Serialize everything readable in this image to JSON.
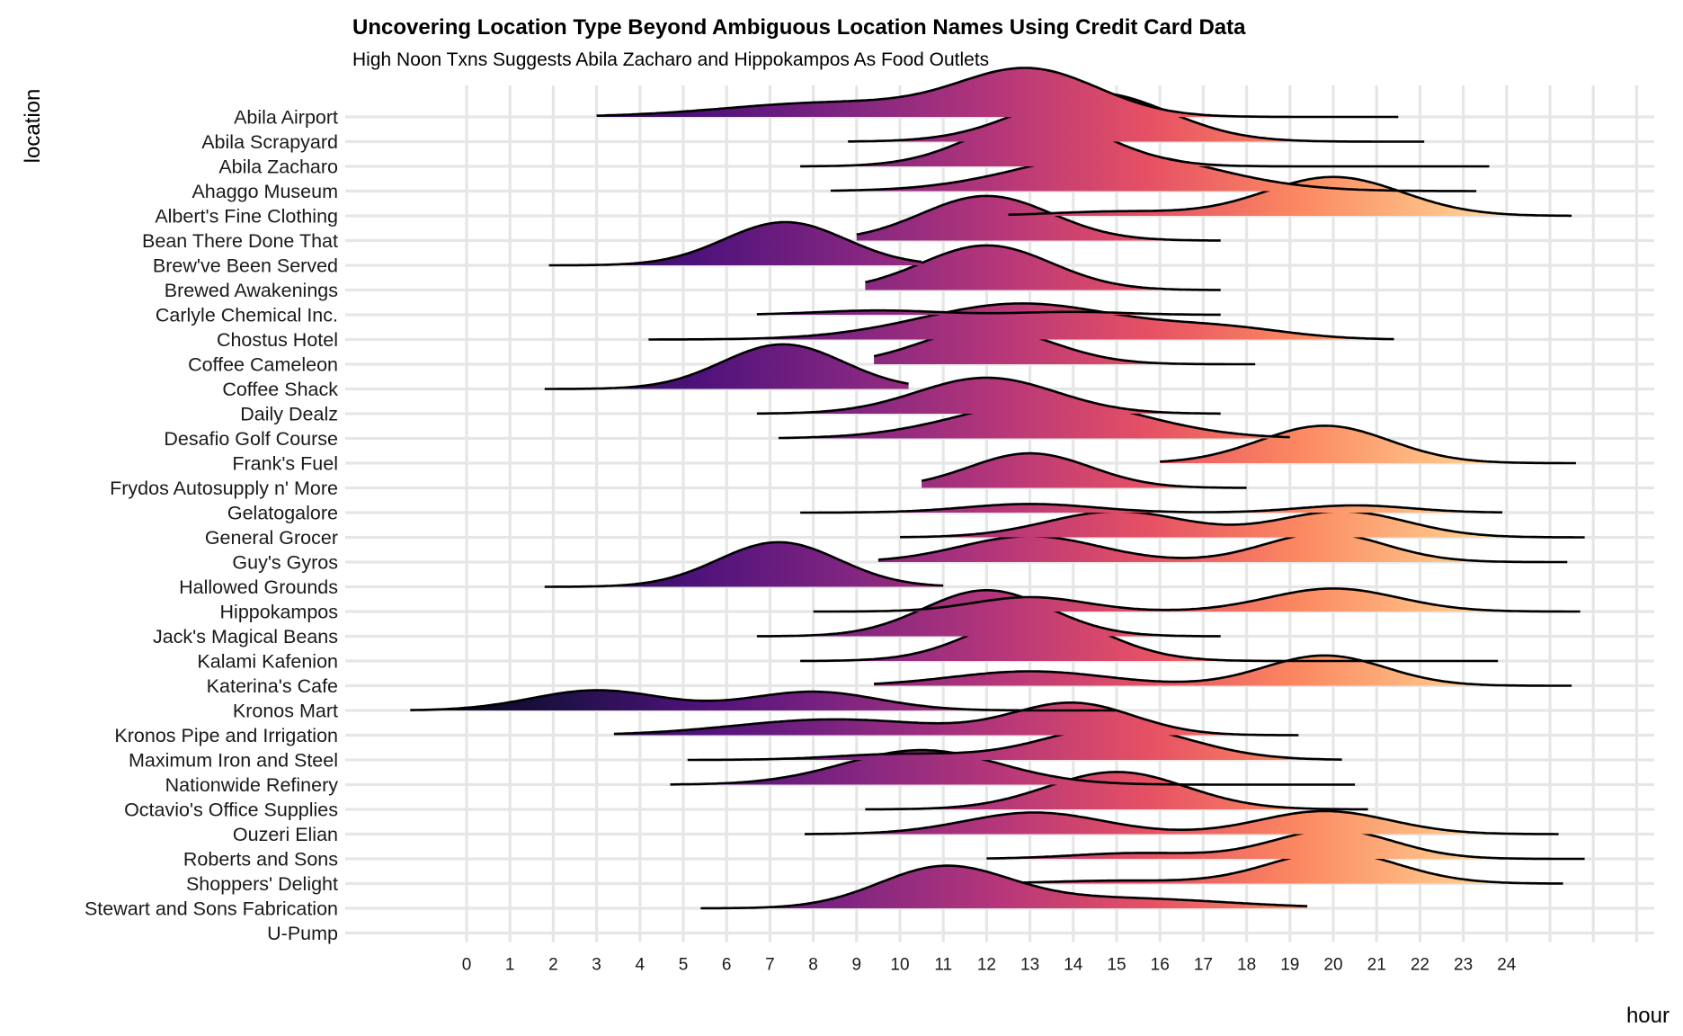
{
  "chart_data": {
    "type": "area",
    "subtype": "ridgeline density",
    "title": "Uncovering Location Type Beyond Ambiguous Location Names Using Credit Card Data",
    "subtitle": "High Noon Txns Suggests Abila Zacharo and Hippokampos As Food Outlets",
    "xlabel": "hour",
    "ylabel": "location",
    "x_ticks": [
      "0",
      "1",
      "2",
      "3",
      "4",
      "5",
      "6",
      "7",
      "8",
      "9",
      "10",
      "11",
      "12",
      "13",
      "14",
      "15",
      "16",
      "17",
      "18",
      "19",
      "20",
      "21",
      "22",
      "23",
      "24"
    ],
    "xlim": [
      -2.8,
      28
    ],
    "fill": "gradient by hour (magma palette)",
    "grid": true,
    "legend": "none",
    "colors": {
      "grid": "#e6e6e6",
      "outline": "#000000",
      "palette_low": "#000004",
      "palette_mid": "#b63679",
      "palette_high": "#fcfdbf"
    },
    "categories": [
      "Abila Airport",
      "Abila Scrapyard",
      "Abila Zacharo",
      "Ahaggo Museum",
      "Albert's Fine Clothing",
      "Bean There Done That",
      "Brew've Been Served",
      "Brewed Awakenings",
      "Carlyle Chemical Inc.",
      "Chostus Hotel",
      "Coffee Cameleon",
      "Coffee Shack",
      "Daily Dealz",
      "Desafio Golf Course",
      "Frank's Fuel",
      "Frydos Autosupply n' More",
      "Gelatogalore",
      "General Grocer",
      "Guy's Gyros",
      "Hallowed Grounds",
      "Hippokampos",
      "Jack's Magical Beans",
      "Kalami Kafenion",
      "Katerina's Cafe",
      "Kronos Mart",
      "Kronos Pipe and Irrigation",
      "Maximum Iron and Steel",
      "Nationwide Refinery",
      "Octavio's Office Supplies",
      "Ouzeri Elian",
      "Roberts and Sons",
      "Shoppers' Delight",
      "Stewart and Sons Fabrication",
      "U-Pump"
    ],
    "series": [
      {
        "name": "Abila Airport",
        "range": [
          3.0,
          21.5
        ],
        "peaks": [
          [
            8.5,
            0.5,
            2.5
          ],
          [
            13.0,
            1.6,
            1.6
          ]
        ]
      },
      {
        "name": "Abila Scrapyard",
        "range": [
          8.8,
          22.1
        ],
        "peaks": [
          [
            14.5,
            1.7,
            1.7
          ]
        ]
      },
      {
        "name": "Abila Zacharo",
        "range": [
          7.7,
          23.6
        ],
        "peaks": [
          [
            13.2,
            1.65,
            1.55
          ]
        ]
      },
      {
        "name": "Ahaggo Museum",
        "range": [
          8.4,
          23.3
        ],
        "peaks": [
          [
            15.0,
            1.3,
            2.2
          ]
        ]
      },
      {
        "name": "Albert's Fine Clothing",
        "range": [
          12.5,
          25.5
        ],
        "peaks": [
          [
            20.0,
            1.35,
            1.6
          ],
          [
            15.0,
            0.15,
            1.5
          ]
        ]
      },
      {
        "name": "Bean There Done That",
        "range": [
          9.0,
          17.4
        ],
        "peaks": [
          [
            12.0,
            1.55,
            1.5
          ]
        ]
      },
      {
        "name": "Brew've Been Served",
        "range": [
          1.9,
          10.5
        ],
        "peaks": [
          [
            7.35,
            1.5,
            1.4
          ]
        ]
      },
      {
        "name": "Brewed Awakenings",
        "range": [
          9.2,
          17.4
        ],
        "peaks": [
          [
            12.0,
            1.55,
            1.5
          ]
        ]
      },
      {
        "name": "Carlyle Chemical Inc.",
        "range": [
          6.7,
          17.4
        ],
        "peaks": [
          [
            9.5,
            0.15,
            1.4
          ],
          [
            14.0,
            0.1,
            1.2
          ]
        ]
      },
      {
        "name": "Chostus Hotel",
        "range": [
          4.2,
          21.4
        ],
        "peaks": [
          [
            12.8,
            1.25,
            2.3
          ],
          [
            17.5,
            0.35,
            1.5
          ]
        ]
      },
      {
        "name": "Coffee Cameleon",
        "range": [
          9.4,
          18.2
        ],
        "peaks": [
          [
            12.0,
            1.25,
            1.5
          ]
        ]
      },
      {
        "name": "Coffee Shack",
        "range": [
          1.8,
          10.2
        ],
        "peaks": [
          [
            7.3,
            1.55,
            1.4
          ]
        ]
      },
      {
        "name": "Daily Dealz",
        "range": [
          6.7,
          17.4
        ],
        "peaks": [
          [
            12.0,
            1.25,
            1.6
          ]
        ]
      },
      {
        "name": "Desafio Golf Course",
        "range": [
          7.2,
          19.0
        ],
        "peaks": [
          [
            13.5,
            1.3,
            2.1
          ]
        ]
      },
      {
        "name": "Frank's Fuel",
        "range": [
          16.0,
          25.6
        ],
        "peaks": [
          [
            19.8,
            1.3,
            1.5
          ]
        ]
      },
      {
        "name": "Frydos Autosupply n' More",
        "range": [
          10.5,
          18.0
        ],
        "peaks": [
          [
            13.0,
            1.2,
            1.4
          ]
        ]
      },
      {
        "name": "Gelatogalore",
        "range": [
          7.7,
          23.9
        ],
        "peaks": [
          [
            13.0,
            0.3,
            1.5
          ],
          [
            20.5,
            0.25,
            1.3
          ]
        ]
      },
      {
        "name": "General Grocer",
        "range": [
          10.0,
          25.8
        ],
        "peaks": [
          [
            15.0,
            0.9,
            1.6
          ],
          [
            20.2,
            0.9,
            1.5
          ]
        ]
      },
      {
        "name": "Guy's Gyros",
        "range": [
          9.5,
          25.4
        ],
        "peaks": [
          [
            13.0,
            0.9,
            1.6
          ],
          [
            19.8,
            1.0,
            1.4
          ]
        ]
      },
      {
        "name": "Hallowed Grounds",
        "range": [
          1.8,
          11.0
        ],
        "peaks": [
          [
            7.2,
            1.55,
            1.4
          ]
        ]
      },
      {
        "name": "Hippokampos",
        "range": [
          8.0,
          25.7
        ],
        "peaks": [
          [
            13.0,
            0.5,
            1.3
          ],
          [
            20.0,
            0.8,
            1.5
          ]
        ]
      },
      {
        "name": "Jack's Magical Beans",
        "range": [
          6.7,
          17.4
        ],
        "peaks": [
          [
            12.0,
            1.6,
            1.45
          ]
        ]
      },
      {
        "name": "Kalami Kafenion",
        "range": [
          7.7,
          23.8
        ],
        "peaks": [
          [
            13.2,
            1.6,
            1.5
          ]
        ]
      },
      {
        "name": "Katerina's Cafe",
        "range": [
          9.4,
          25.5
        ],
        "peaks": [
          [
            13.0,
            0.5,
            1.8
          ],
          [
            19.8,
            1.05,
            1.4
          ]
        ]
      },
      {
        "name": "Kronos Mart",
        "range": [
          -1.3,
          15.0
        ],
        "peaks": [
          [
            3.0,
            0.7,
            1.5
          ],
          [
            8.0,
            0.65,
            1.5
          ]
        ]
      },
      {
        "name": "Kronos Pipe and Irrigation",
        "range": [
          3.4,
          19.2
        ],
        "peaks": [
          [
            8.5,
            0.55,
            2.3
          ],
          [
            14.0,
            1.1,
            1.4
          ]
        ]
      },
      {
        "name": "Maximum Iron and Steel",
        "range": [
          5.1,
          20.2
        ],
        "peaks": [
          [
            10.0,
            0.2,
            1.5
          ],
          [
            15.0,
            1.15,
            1.7
          ]
        ]
      },
      {
        "name": "Nationwide Refinery",
        "range": [
          4.7,
          20.5
        ],
        "peaks": [
          [
            10.5,
            1.2,
            1.8
          ]
        ]
      },
      {
        "name": "Octavio's Office Supplies",
        "range": [
          9.2,
          20.8
        ],
        "peaks": [
          [
            15.0,
            1.3,
            1.6
          ]
        ]
      },
      {
        "name": "Ouzeri Elian",
        "range": [
          7.8,
          25.2
        ],
        "peaks": [
          [
            13.1,
            0.75,
            1.6
          ],
          [
            19.8,
            0.8,
            1.5
          ]
        ]
      },
      {
        "name": "Roberts and Sons",
        "range": [
          12.0,
          25.8
        ],
        "peaks": [
          [
            15.5,
            0.2,
            1.5
          ],
          [
            20.0,
            1.0,
            1.4
          ]
        ]
      },
      {
        "name": "Shoppers' Delight",
        "range": [
          12.8,
          25.3
        ],
        "peaks": [
          [
            15.0,
            0.1,
            1.5
          ],
          [
            20.0,
            1.1,
            1.5
          ]
        ]
      },
      {
        "name": "Stewart and Sons Fabrication",
        "range": [
          5.4,
          19.4
        ],
        "peaks": [
          [
            11.0,
            1.38,
            1.5
          ],
          [
            15.0,
            0.35,
            2.5
          ]
        ]
      },
      {
        "name": "U-Pump",
        "range": [
          0,
          0
        ],
        "peaks": []
      }
    ]
  }
}
